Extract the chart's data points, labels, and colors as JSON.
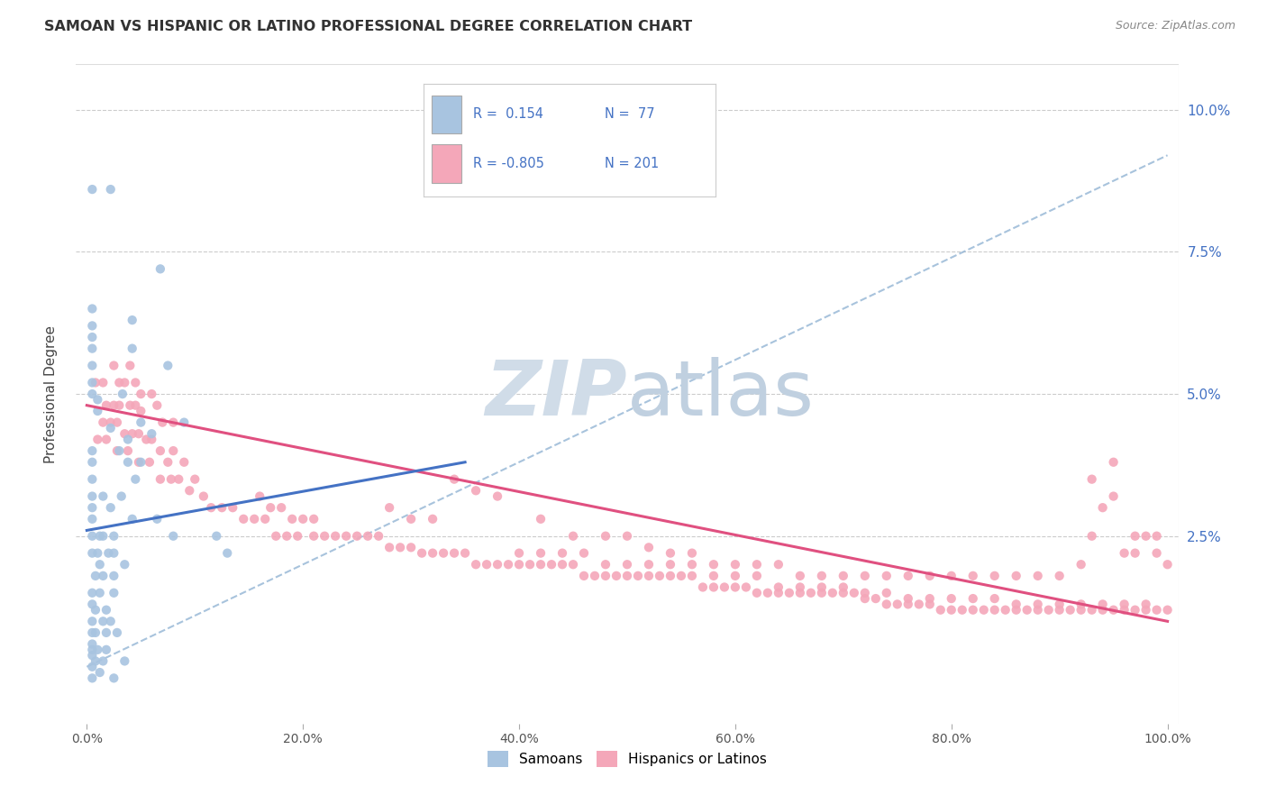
{
  "title": "SAMOAN VS HISPANIC OR LATINO PROFESSIONAL DEGREE CORRELATION CHART",
  "source": "Source: ZipAtlas.com",
  "ylabel": "Professional Degree",
  "ytick_labels": [
    "",
    "2.5%",
    "5.0%",
    "7.5%",
    "10.0%"
  ],
  "ytick_values": [
    0.0,
    0.025,
    0.05,
    0.075,
    0.1
  ],
  "xtick_values": [
    0.0,
    0.2,
    0.4,
    0.6,
    0.8,
    1.0
  ],
  "xtick_labels": [
    "0.0%",
    "20.0%",
    "40.0%",
    "60.0%",
    "80.0%",
    "100.0%"
  ],
  "xlim": [
    -0.01,
    1.01
  ],
  "ylim": [
    -0.008,
    0.108
  ],
  "legend_blue_r": "0.154",
  "legend_blue_n": "77",
  "legend_pink_r": "-0.805",
  "legend_pink_n": "201",
  "blue_scatter_color": "#a8c4e0",
  "pink_scatter_color": "#f4a7b9",
  "blue_line_color": "#4472c4",
  "pink_line_color": "#e05080",
  "dashed_line_color": "#92b4d4",
  "legend_text_color": "#4472c4",
  "watermark_zip_color": "#d0dce8",
  "watermark_atlas_color": "#c0d0e0",
  "background_color": "#ffffff",
  "blue_trend_x": [
    0.0,
    0.35
  ],
  "blue_trend_y": [
    0.026,
    0.038
  ],
  "pink_trend_x": [
    0.0,
    1.0
  ],
  "pink_trend_y": [
    0.048,
    0.01
  ],
  "dashed_trend_x": [
    0.0,
    1.0
  ],
  "dashed_trend_y": [
    0.002,
    0.092
  ],
  "blue_points": [
    [
      0.005,
      0.086
    ],
    [
      0.022,
      0.086
    ],
    [
      0.068,
      0.072
    ],
    [
      0.042,
      0.063
    ],
    [
      0.042,
      0.058
    ],
    [
      0.075,
      0.055
    ],
    [
      0.033,
      0.05
    ],
    [
      0.01,
      0.049
    ],
    [
      0.01,
      0.047
    ],
    [
      0.022,
      0.044
    ],
    [
      0.05,
      0.045
    ],
    [
      0.06,
      0.043
    ],
    [
      0.038,
      0.042
    ],
    [
      0.09,
      0.045
    ],
    [
      0.032,
      0.032
    ],
    [
      0.03,
      0.04
    ],
    [
      0.05,
      0.038
    ],
    [
      0.045,
      0.035
    ],
    [
      0.038,
      0.038
    ],
    [
      0.065,
      0.028
    ],
    [
      0.015,
      0.032
    ],
    [
      0.022,
      0.03
    ],
    [
      0.042,
      0.028
    ],
    [
      0.015,
      0.025
    ],
    [
      0.025,
      0.025
    ],
    [
      0.08,
      0.025
    ],
    [
      0.12,
      0.025
    ],
    [
      0.012,
      0.025
    ],
    [
      0.01,
      0.022
    ],
    [
      0.025,
      0.022
    ],
    [
      0.02,
      0.022
    ],
    [
      0.012,
      0.02
    ],
    [
      0.035,
      0.02
    ],
    [
      0.015,
      0.018
    ],
    [
      0.025,
      0.018
    ],
    [
      0.008,
      0.018
    ],
    [
      0.012,
      0.015
    ],
    [
      0.018,
      0.012
    ],
    [
      0.008,
      0.012
    ],
    [
      0.015,
      0.01
    ],
    [
      0.022,
      0.01
    ],
    [
      0.028,
      0.008
    ],
    [
      0.008,
      0.008
    ],
    [
      0.018,
      0.005
    ],
    [
      0.005,
      0.005
    ],
    [
      0.008,
      0.003
    ],
    [
      0.015,
      0.003
    ],
    [
      0.035,
      0.003
    ],
    [
      0.005,
      0.002
    ],
    [
      0.012,
      0.001
    ],
    [
      0.025,
      0.0
    ],
    [
      0.005,
      0.0
    ],
    [
      0.005,
      0.04
    ],
    [
      0.005,
      0.038
    ],
    [
      0.005,
      0.035
    ],
    [
      0.005,
      0.032
    ],
    [
      0.005,
      0.03
    ],
    [
      0.005,
      0.028
    ],
    [
      0.005,
      0.025
    ],
    [
      0.005,
      0.022
    ],
    [
      0.005,
      0.05
    ],
    [
      0.005,
      0.052
    ],
    [
      0.005,
      0.055
    ],
    [
      0.005,
      0.058
    ],
    [
      0.005,
      0.06
    ],
    [
      0.005,
      0.062
    ],
    [
      0.005,
      0.065
    ],
    [
      0.005,
      0.015
    ],
    [
      0.005,
      0.013
    ],
    [
      0.005,
      0.01
    ],
    [
      0.005,
      0.008
    ],
    [
      0.005,
      0.006
    ],
    [
      0.005,
      0.004
    ],
    [
      0.025,
      0.015
    ],
    [
      0.018,
      0.008
    ],
    [
      0.01,
      0.005
    ],
    [
      0.13,
      0.022
    ]
  ],
  "pink_points": [
    [
      0.008,
      0.052
    ],
    [
      0.015,
      0.052
    ],
    [
      0.025,
      0.055
    ],
    [
      0.03,
      0.052
    ],
    [
      0.035,
      0.052
    ],
    [
      0.04,
      0.055
    ],
    [
      0.045,
      0.052
    ],
    [
      0.05,
      0.05
    ],
    [
      0.06,
      0.05
    ],
    [
      0.065,
      0.048
    ],
    [
      0.07,
      0.045
    ],
    [
      0.08,
      0.045
    ],
    [
      0.018,
      0.048
    ],
    [
      0.025,
      0.048
    ],
    [
      0.03,
      0.048
    ],
    [
      0.04,
      0.048
    ],
    [
      0.045,
      0.048
    ],
    [
      0.05,
      0.047
    ],
    [
      0.015,
      0.045
    ],
    [
      0.022,
      0.045
    ],
    [
      0.028,
      0.045
    ],
    [
      0.035,
      0.043
    ],
    [
      0.042,
      0.043
    ],
    [
      0.048,
      0.043
    ],
    [
      0.055,
      0.042
    ],
    [
      0.06,
      0.042
    ],
    [
      0.068,
      0.04
    ],
    [
      0.075,
      0.038
    ],
    [
      0.08,
      0.04
    ],
    [
      0.09,
      0.038
    ],
    [
      0.01,
      0.042
    ],
    [
      0.018,
      0.042
    ],
    [
      0.028,
      0.04
    ],
    [
      0.038,
      0.04
    ],
    [
      0.048,
      0.038
    ],
    [
      0.058,
      0.038
    ],
    [
      0.068,
      0.035
    ],
    [
      0.078,
      0.035
    ],
    [
      0.085,
      0.035
    ],
    [
      0.095,
      0.033
    ],
    [
      0.1,
      0.035
    ],
    [
      0.108,
      0.032
    ],
    [
      0.115,
      0.03
    ],
    [
      0.125,
      0.03
    ],
    [
      0.135,
      0.03
    ],
    [
      0.145,
      0.028
    ],
    [
      0.155,
      0.028
    ],
    [
      0.165,
      0.028
    ],
    [
      0.175,
      0.025
    ],
    [
      0.185,
      0.025
    ],
    [
      0.195,
      0.025
    ],
    [
      0.21,
      0.025
    ],
    [
      0.22,
      0.025
    ],
    [
      0.23,
      0.025
    ],
    [
      0.24,
      0.025
    ],
    [
      0.25,
      0.025
    ],
    [
      0.26,
      0.025
    ],
    [
      0.27,
      0.025
    ],
    [
      0.28,
      0.023
    ],
    [
      0.29,
      0.023
    ],
    [
      0.16,
      0.032
    ],
    [
      0.17,
      0.03
    ],
    [
      0.18,
      0.03
    ],
    [
      0.19,
      0.028
    ],
    [
      0.2,
      0.028
    ],
    [
      0.21,
      0.028
    ],
    [
      0.3,
      0.023
    ],
    [
      0.31,
      0.022
    ],
    [
      0.32,
      0.022
    ],
    [
      0.33,
      0.022
    ],
    [
      0.34,
      0.022
    ],
    [
      0.35,
      0.022
    ],
    [
      0.36,
      0.02
    ],
    [
      0.37,
      0.02
    ],
    [
      0.38,
      0.02
    ],
    [
      0.39,
      0.02
    ],
    [
      0.4,
      0.02
    ],
    [
      0.41,
      0.02
    ],
    [
      0.42,
      0.02
    ],
    [
      0.43,
      0.02
    ],
    [
      0.44,
      0.02
    ],
    [
      0.45,
      0.02
    ],
    [
      0.46,
      0.018
    ],
    [
      0.47,
      0.018
    ],
    [
      0.48,
      0.018
    ],
    [
      0.49,
      0.018
    ],
    [
      0.5,
      0.018
    ],
    [
      0.51,
      0.018
    ],
    [
      0.52,
      0.018
    ],
    [
      0.53,
      0.018
    ],
    [
      0.54,
      0.018
    ],
    [
      0.55,
      0.018
    ],
    [
      0.56,
      0.018
    ],
    [
      0.57,
      0.016
    ],
    [
      0.58,
      0.016
    ],
    [
      0.59,
      0.016
    ],
    [
      0.6,
      0.016
    ],
    [
      0.61,
      0.016
    ],
    [
      0.62,
      0.015
    ],
    [
      0.63,
      0.015
    ],
    [
      0.64,
      0.015
    ],
    [
      0.65,
      0.015
    ],
    [
      0.66,
      0.015
    ],
    [
      0.67,
      0.015
    ],
    [
      0.68,
      0.015
    ],
    [
      0.69,
      0.015
    ],
    [
      0.7,
      0.015
    ],
    [
      0.71,
      0.015
    ],
    [
      0.72,
      0.014
    ],
    [
      0.73,
      0.014
    ],
    [
      0.74,
      0.013
    ],
    [
      0.75,
      0.013
    ],
    [
      0.76,
      0.013
    ],
    [
      0.77,
      0.013
    ],
    [
      0.78,
      0.013
    ],
    [
      0.79,
      0.012
    ],
    [
      0.8,
      0.012
    ],
    [
      0.81,
      0.012
    ],
    [
      0.82,
      0.012
    ],
    [
      0.83,
      0.012
    ],
    [
      0.84,
      0.012
    ],
    [
      0.85,
      0.012
    ],
    [
      0.86,
      0.012
    ],
    [
      0.87,
      0.012
    ],
    [
      0.88,
      0.012
    ],
    [
      0.89,
      0.012
    ],
    [
      0.9,
      0.012
    ],
    [
      0.91,
      0.012
    ],
    [
      0.92,
      0.012
    ],
    [
      0.93,
      0.012
    ],
    [
      0.94,
      0.012
    ],
    [
      0.95,
      0.012
    ],
    [
      0.96,
      0.012
    ],
    [
      0.97,
      0.012
    ],
    [
      0.98,
      0.012
    ],
    [
      0.99,
      0.012
    ],
    [
      1.0,
      0.012
    ],
    [
      0.34,
      0.035
    ],
    [
      0.36,
      0.033
    ],
    [
      0.38,
      0.032
    ],
    [
      0.42,
      0.028
    ],
    [
      0.45,
      0.025
    ],
    [
      0.48,
      0.025
    ],
    [
      0.5,
      0.025
    ],
    [
      0.52,
      0.023
    ],
    [
      0.54,
      0.022
    ],
    [
      0.56,
      0.022
    ],
    [
      0.58,
      0.02
    ],
    [
      0.6,
      0.02
    ],
    [
      0.62,
      0.02
    ],
    [
      0.64,
      0.02
    ],
    [
      0.66,
      0.018
    ],
    [
      0.68,
      0.018
    ],
    [
      0.7,
      0.018
    ],
    [
      0.72,
      0.018
    ],
    [
      0.74,
      0.018
    ],
    [
      0.76,
      0.018
    ],
    [
      0.78,
      0.018
    ],
    [
      0.8,
      0.018
    ],
    [
      0.82,
      0.018
    ],
    [
      0.84,
      0.018
    ],
    [
      0.86,
      0.018
    ],
    [
      0.88,
      0.018
    ],
    [
      0.9,
      0.018
    ],
    [
      0.92,
      0.02
    ],
    [
      0.93,
      0.035
    ],
    [
      0.94,
      0.03
    ],
    [
      0.95,
      0.038
    ],
    [
      0.96,
      0.022
    ],
    [
      0.97,
      0.022
    ],
    [
      0.98,
      0.025
    ],
    [
      0.99,
      0.022
    ],
    [
      1.0,
      0.02
    ],
    [
      0.93,
      0.025
    ],
    [
      0.95,
      0.032
    ],
    [
      0.97,
      0.025
    ],
    [
      0.99,
      0.025
    ],
    [
      0.28,
      0.03
    ],
    [
      0.3,
      0.028
    ],
    [
      0.32,
      0.028
    ],
    [
      0.4,
      0.022
    ],
    [
      0.42,
      0.022
    ],
    [
      0.44,
      0.022
    ],
    [
      0.46,
      0.022
    ],
    [
      0.48,
      0.02
    ],
    [
      0.5,
      0.02
    ],
    [
      0.52,
      0.02
    ],
    [
      0.54,
      0.02
    ],
    [
      0.56,
      0.02
    ],
    [
      0.58,
      0.018
    ],
    [
      0.6,
      0.018
    ],
    [
      0.62,
      0.018
    ],
    [
      0.64,
      0.016
    ],
    [
      0.66,
      0.016
    ],
    [
      0.68,
      0.016
    ],
    [
      0.7,
      0.016
    ],
    [
      0.72,
      0.015
    ],
    [
      0.74,
      0.015
    ],
    [
      0.76,
      0.014
    ],
    [
      0.78,
      0.014
    ],
    [
      0.8,
      0.014
    ],
    [
      0.82,
      0.014
    ],
    [
      0.84,
      0.014
    ],
    [
      0.86,
      0.013
    ],
    [
      0.88,
      0.013
    ],
    [
      0.9,
      0.013
    ],
    [
      0.92,
      0.013
    ],
    [
      0.94,
      0.013
    ],
    [
      0.96,
      0.013
    ],
    [
      0.98,
      0.013
    ]
  ]
}
